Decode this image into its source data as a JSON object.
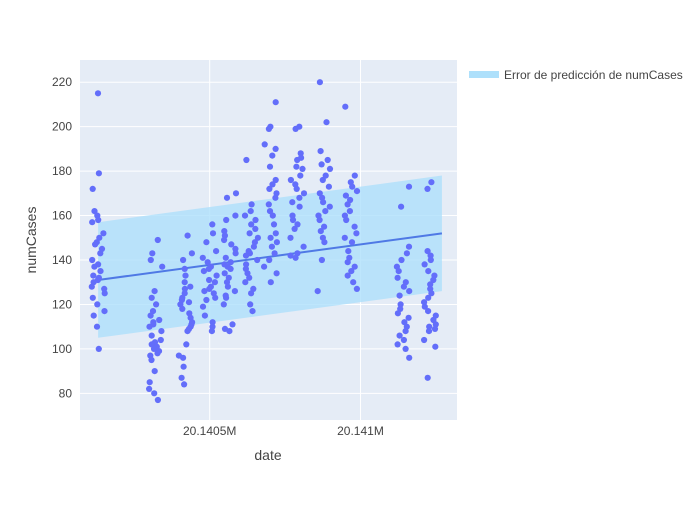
{
  "colors": {
    "plot_background": "#e5ecf6",
    "grid": "#ffffff",
    "points": "#636efa",
    "band": "#aee0fb",
    "trend_line": "#4f79e5",
    "axis_text": "#444444"
  },
  "chart_data": {
    "type": "scatter",
    "title": "",
    "xlabel": "date",
    "ylabel": "numCases",
    "x_tick_labels": [
      "20.1405M",
      "20.141M"
    ],
    "y_tick_labels": [
      "80",
      "100",
      "120",
      "140",
      "160",
      "180",
      "200",
      "220"
    ],
    "legend": {
      "label": "Error de predicción de numCases",
      "placement": "top-right"
    },
    "x_range": [
      20140070,
      20141320
    ],
    "ylim": [
      68,
      230
    ],
    "grid": true,
    "series": [
      {
        "kind": "points",
        "groups": [
          {
            "x": 20140130,
            "y": [
              215,
              179,
              172,
              162,
              160,
              158,
              157,
              152,
              150,
              148,
              147,
              145,
              143,
              140,
              138,
              137,
              135,
              133,
              132,
              131,
              130,
              128,
              127,
              125,
              123,
              120,
              117,
              115,
              110,
              100
            ]
          },
          {
            "x": 20140320,
            "y": [
              149,
              143,
              140,
              137,
              126,
              123,
              120,
              117,
              115,
              113,
              112,
              111,
              110,
              108,
              106,
              104,
              103,
              102,
              101,
              100,
              99,
              98,
              97,
              95,
              90,
              85,
              82,
              80,
              77
            ]
          },
          {
            "x": 20140420,
            "y": [
              151,
              143,
              140,
              136,
              133,
              130,
              128,
              127,
              125,
              123,
              122,
              121,
              120,
              118,
              116,
              114,
              112,
              111,
              110,
              109,
              108,
              102,
              97,
              96,
              92,
              87,
              84
            ]
          },
          {
            "x": 20140500,
            "y": [
              156,
              152,
              148,
              144,
              141,
              139,
              137,
              136,
              135,
              133,
              131,
              130,
              128,
              127,
              126,
              125,
              123,
              122,
              119,
              115,
              112,
              110,
              108
            ]
          },
          {
            "x": 20140570,
            "y": [
              170,
              168,
              160,
              158,
              153,
              151,
              149,
              147,
              145,
              143,
              141,
              139,
              138,
              137,
              136,
              134,
              132,
              130,
              128,
              126,
              124,
              123,
              120,
              111,
              109,
              108
            ]
          },
          {
            "x": 20140640,
            "y": [
              185,
              165,
              162,
              160,
              158,
              156,
              154,
              152,
              150,
              148,
              146,
              144,
              143,
              142,
              140,
              138,
              136,
              134,
              132,
              130,
              127,
              125,
              120,
              117
            ]
          },
          {
            "x": 20140700,
            "y": [
              211,
              200,
              199,
              192,
              190,
              187,
              182,
              176,
              174,
              172,
              170,
              168,
              165,
              162,
              160,
              156,
              152,
              150,
              148,
              146,
              143,
              140,
              137,
              134,
              130
            ]
          },
          {
            "x": 20140790,
            "y": [
              200,
              199,
              188,
              186,
              185,
              182,
              181,
              178,
              176,
              174,
              172,
              170,
              168,
              166,
              164,
              160,
              158,
              156,
              154,
              150,
              146,
              143,
              142,
              141
            ]
          },
          {
            "x": 20140880,
            "y": [
              220,
              202,
              189,
              185,
              183,
              181,
              178,
              176,
              173,
              170,
              168,
              166,
              164,
              162,
              160,
              158,
              155,
              153,
              150,
              148,
              140,
              126
            ]
          },
          {
            "x": 20140970,
            "y": [
              209,
              178,
              175,
              173,
              171,
              169,
              167,
              165,
              162,
              160,
              158,
              155,
              152,
              150,
              148,
              144,
              141,
              139,
              137,
              135,
              133,
              130,
              127
            ]
          },
          {
            "x": 20141140,
            "y": [
              173,
              164,
              146,
              143,
              140,
              137,
              135,
              132,
              130,
              128,
              126,
              124,
              120,
              118,
              116,
              114,
              112,
              110,
              108,
              106,
              104,
              102,
              100,
              96
            ]
          },
          {
            "x": 20141230,
            "y": [
              175,
              172,
              144,
              142,
              140,
              138,
              135,
              133,
              131,
              129,
              127,
              125,
              123,
              121,
              119,
              117,
              115,
              113,
              111,
              110,
              109,
              108,
              104,
              101,
              87
            ]
          }
        ]
      },
      {
        "kind": "trend_line",
        "x": [
          20140130,
          20141270
        ],
        "y": [
          131,
          152
        ]
      },
      {
        "name": "Error de predicción de numCases",
        "kind": "band",
        "x": [
          20140130,
          20141270
        ],
        "lower": [
          105,
          126
        ],
        "upper": [
          157,
          178
        ]
      }
    ]
  }
}
